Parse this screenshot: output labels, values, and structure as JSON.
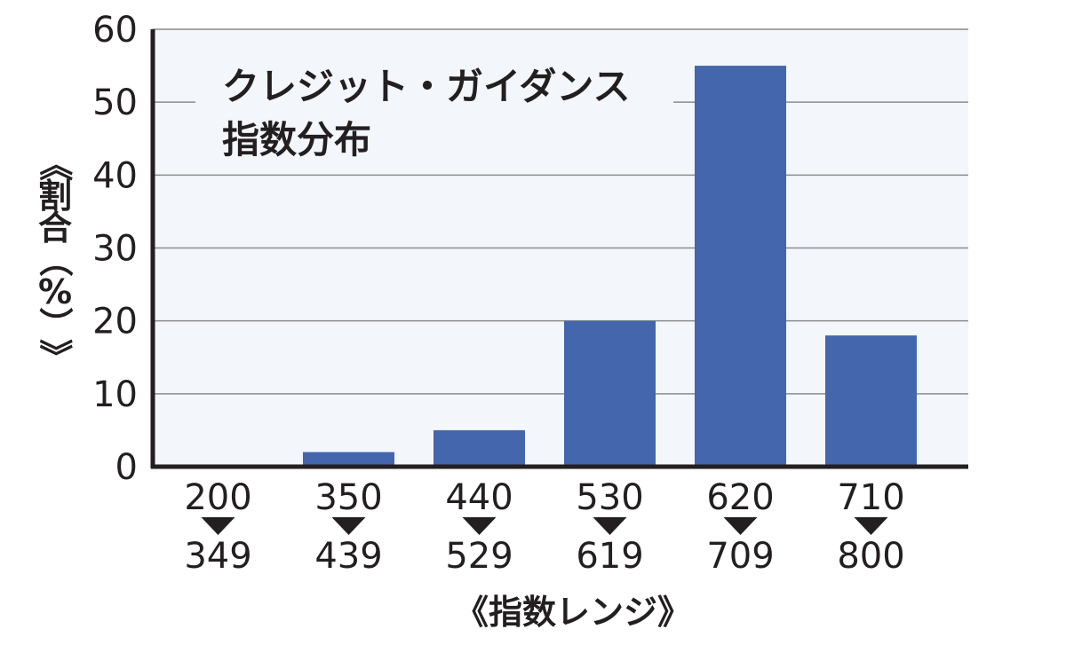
{
  "chart_data": {
    "type": "bar",
    "title_lines": [
      "クレジット・ガイダンス",
      "指数分布"
    ],
    "ylabel_chars": [
      "《",
      "割",
      "合",
      "（",
      "%",
      "）",
      "》"
    ],
    "xlabel": "《指数レンジ》",
    "categories": [
      "200-349",
      "350-439",
      "440-529",
      "530-619",
      "620-709",
      "710-800"
    ],
    "category_lines": [
      [
        "200",
        "349"
      ],
      [
        "350",
        "439"
      ],
      [
        "440",
        "529"
      ],
      [
        "530",
        "619"
      ],
      [
        "620",
        "709"
      ],
      [
        "710",
        "800"
      ]
    ],
    "values": [
      0,
      2,
      5,
      20,
      55,
      18
    ],
    "ylim": [
      0,
      60
    ],
    "yticks": [
      0,
      10,
      20,
      30,
      40,
      50,
      60
    ],
    "grid": true,
    "legend": false
  },
  "colors": {
    "bar": "#4366ac",
    "plot_background": "#f3f6fb",
    "gridline": "#8c8c8c",
    "axis": "#231f20",
    "text": "#231f20"
  }
}
